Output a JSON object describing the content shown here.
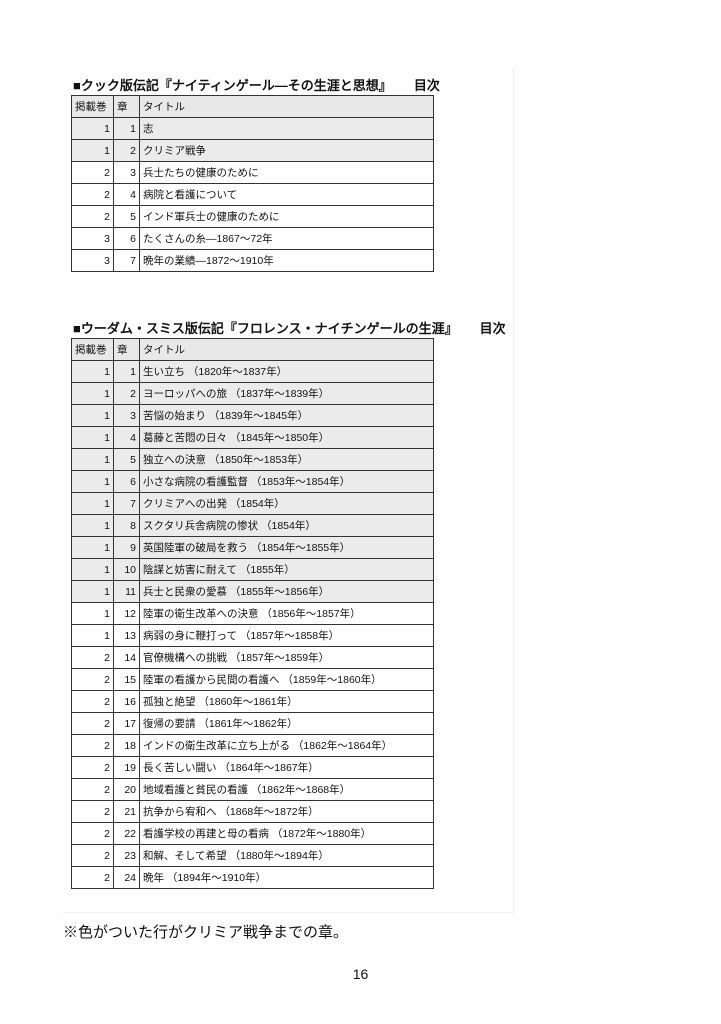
{
  "cook": {
    "title": "■クック版伝記『ナイティンゲール―その生涯と思想』",
    "title_suffix": "目次",
    "headers": [
      "掲載巻",
      "章",
      "タイトル"
    ],
    "rows": [
      {
        "vol": "1",
        "ch": "1",
        "title": "志",
        "shaded": true
      },
      {
        "vol": "1",
        "ch": "2",
        "title": "クリミア戦争",
        "shaded": true
      },
      {
        "vol": "2",
        "ch": "3",
        "title": "兵士たちの健康のために",
        "shaded": false
      },
      {
        "vol": "2",
        "ch": "4",
        "title": "病院と看護について",
        "shaded": false
      },
      {
        "vol": "2",
        "ch": "5",
        "title": "インド軍兵士の健康のために",
        "shaded": false
      },
      {
        "vol": "3",
        "ch": "6",
        "title": "たくさんの糸―1867〜72年",
        "shaded": false
      },
      {
        "vol": "3",
        "ch": "7",
        "title": "晩年の業績―1872〜1910年",
        "shaded": false
      }
    ]
  },
  "woodham": {
    "title": "■ウーダム・スミス版伝記『フロレンス・ナイチンゲールの生涯』",
    "title_suffix": "目次",
    "headers": [
      "掲載巻",
      "章",
      "タイトル"
    ],
    "rows": [
      {
        "vol": "1",
        "ch": "1",
        "title": "生い立ち （1820年〜1837年）",
        "shaded": true
      },
      {
        "vol": "1",
        "ch": "2",
        "title": "ヨーロッパへの旅 （1837年〜1839年）",
        "shaded": true
      },
      {
        "vol": "1",
        "ch": "3",
        "title": "苦悩の始まり （1839年〜1845年）",
        "shaded": true
      },
      {
        "vol": "1",
        "ch": "4",
        "title": "葛藤と苦悶の日々 （1845年〜1850年）",
        "shaded": true
      },
      {
        "vol": "1",
        "ch": "5",
        "title": "独立への決意 （1850年〜1853年）",
        "shaded": true
      },
      {
        "vol": "1",
        "ch": "6",
        "title": "小さな病院の看護監督 （1853年〜1854年）",
        "shaded": true
      },
      {
        "vol": "1",
        "ch": "7",
        "title": "クリミアへの出発 （1854年）",
        "shaded": true
      },
      {
        "vol": "1",
        "ch": "8",
        "title": "スクタリ兵舎病院の惨状 （1854年）",
        "shaded": true
      },
      {
        "vol": "1",
        "ch": "9",
        "title": "英国陸軍の破局を救う （1854年〜1855年）",
        "shaded": true
      },
      {
        "vol": "1",
        "ch": "10",
        "title": "陰謀と妨害に耐えて （1855年）",
        "shaded": true
      },
      {
        "vol": "1",
        "ch": "11",
        "title": "兵士と民衆の愛慕 （1855年〜1856年）",
        "shaded": true
      },
      {
        "vol": "1",
        "ch": "12",
        "title": "陸軍の衛生改革への決意 （1856年〜1857年）",
        "shaded": false
      },
      {
        "vol": "1",
        "ch": "13",
        "title": "病弱の身に鞭打って （1857年〜1858年）",
        "shaded": false
      },
      {
        "vol": "2",
        "ch": "14",
        "title": "官僚機構への挑戦 （1857年〜1859年）",
        "shaded": false
      },
      {
        "vol": "2",
        "ch": "15",
        "title": "陸軍の看護から民間の看護へ （1859年〜1860年）",
        "shaded": false
      },
      {
        "vol": "2",
        "ch": "16",
        "title": "孤独と絶望 （1860年〜1861年）",
        "shaded": false
      },
      {
        "vol": "2",
        "ch": "17",
        "title": "復帰の要請 （1861年〜1862年）",
        "shaded": false
      },
      {
        "vol": "2",
        "ch": "18",
        "title": "インドの衛生改革に立ち上がる （1862年〜1864年）",
        "shaded": false
      },
      {
        "vol": "2",
        "ch": "19",
        "title": "長く苦しい闘い （1864年〜1867年）",
        "shaded": false
      },
      {
        "vol": "2",
        "ch": "20",
        "title": "地域看護と貧民の看護 （1862年〜1868年）",
        "shaded": false
      },
      {
        "vol": "2",
        "ch": "21",
        "title": "抗争から宥和へ （1868年〜1872年）",
        "shaded": false
      },
      {
        "vol": "2",
        "ch": "22",
        "title": "看護学校の再建と母の看病 （1872年〜1880年）",
        "shaded": false
      },
      {
        "vol": "2",
        "ch": "23",
        "title": "和解、そして希望 （1880年〜1894年）",
        "shaded": false
      },
      {
        "vol": "2",
        "ch": "24",
        "title": "晩年 （1894年〜1910年）",
        "shaded": false
      }
    ]
  },
  "note": "※色がついた行がクリミア戦争までの章。",
  "page_number": "16",
  "colors": {
    "shaded_row": "#ebebeb",
    "border": "#333333"
  }
}
